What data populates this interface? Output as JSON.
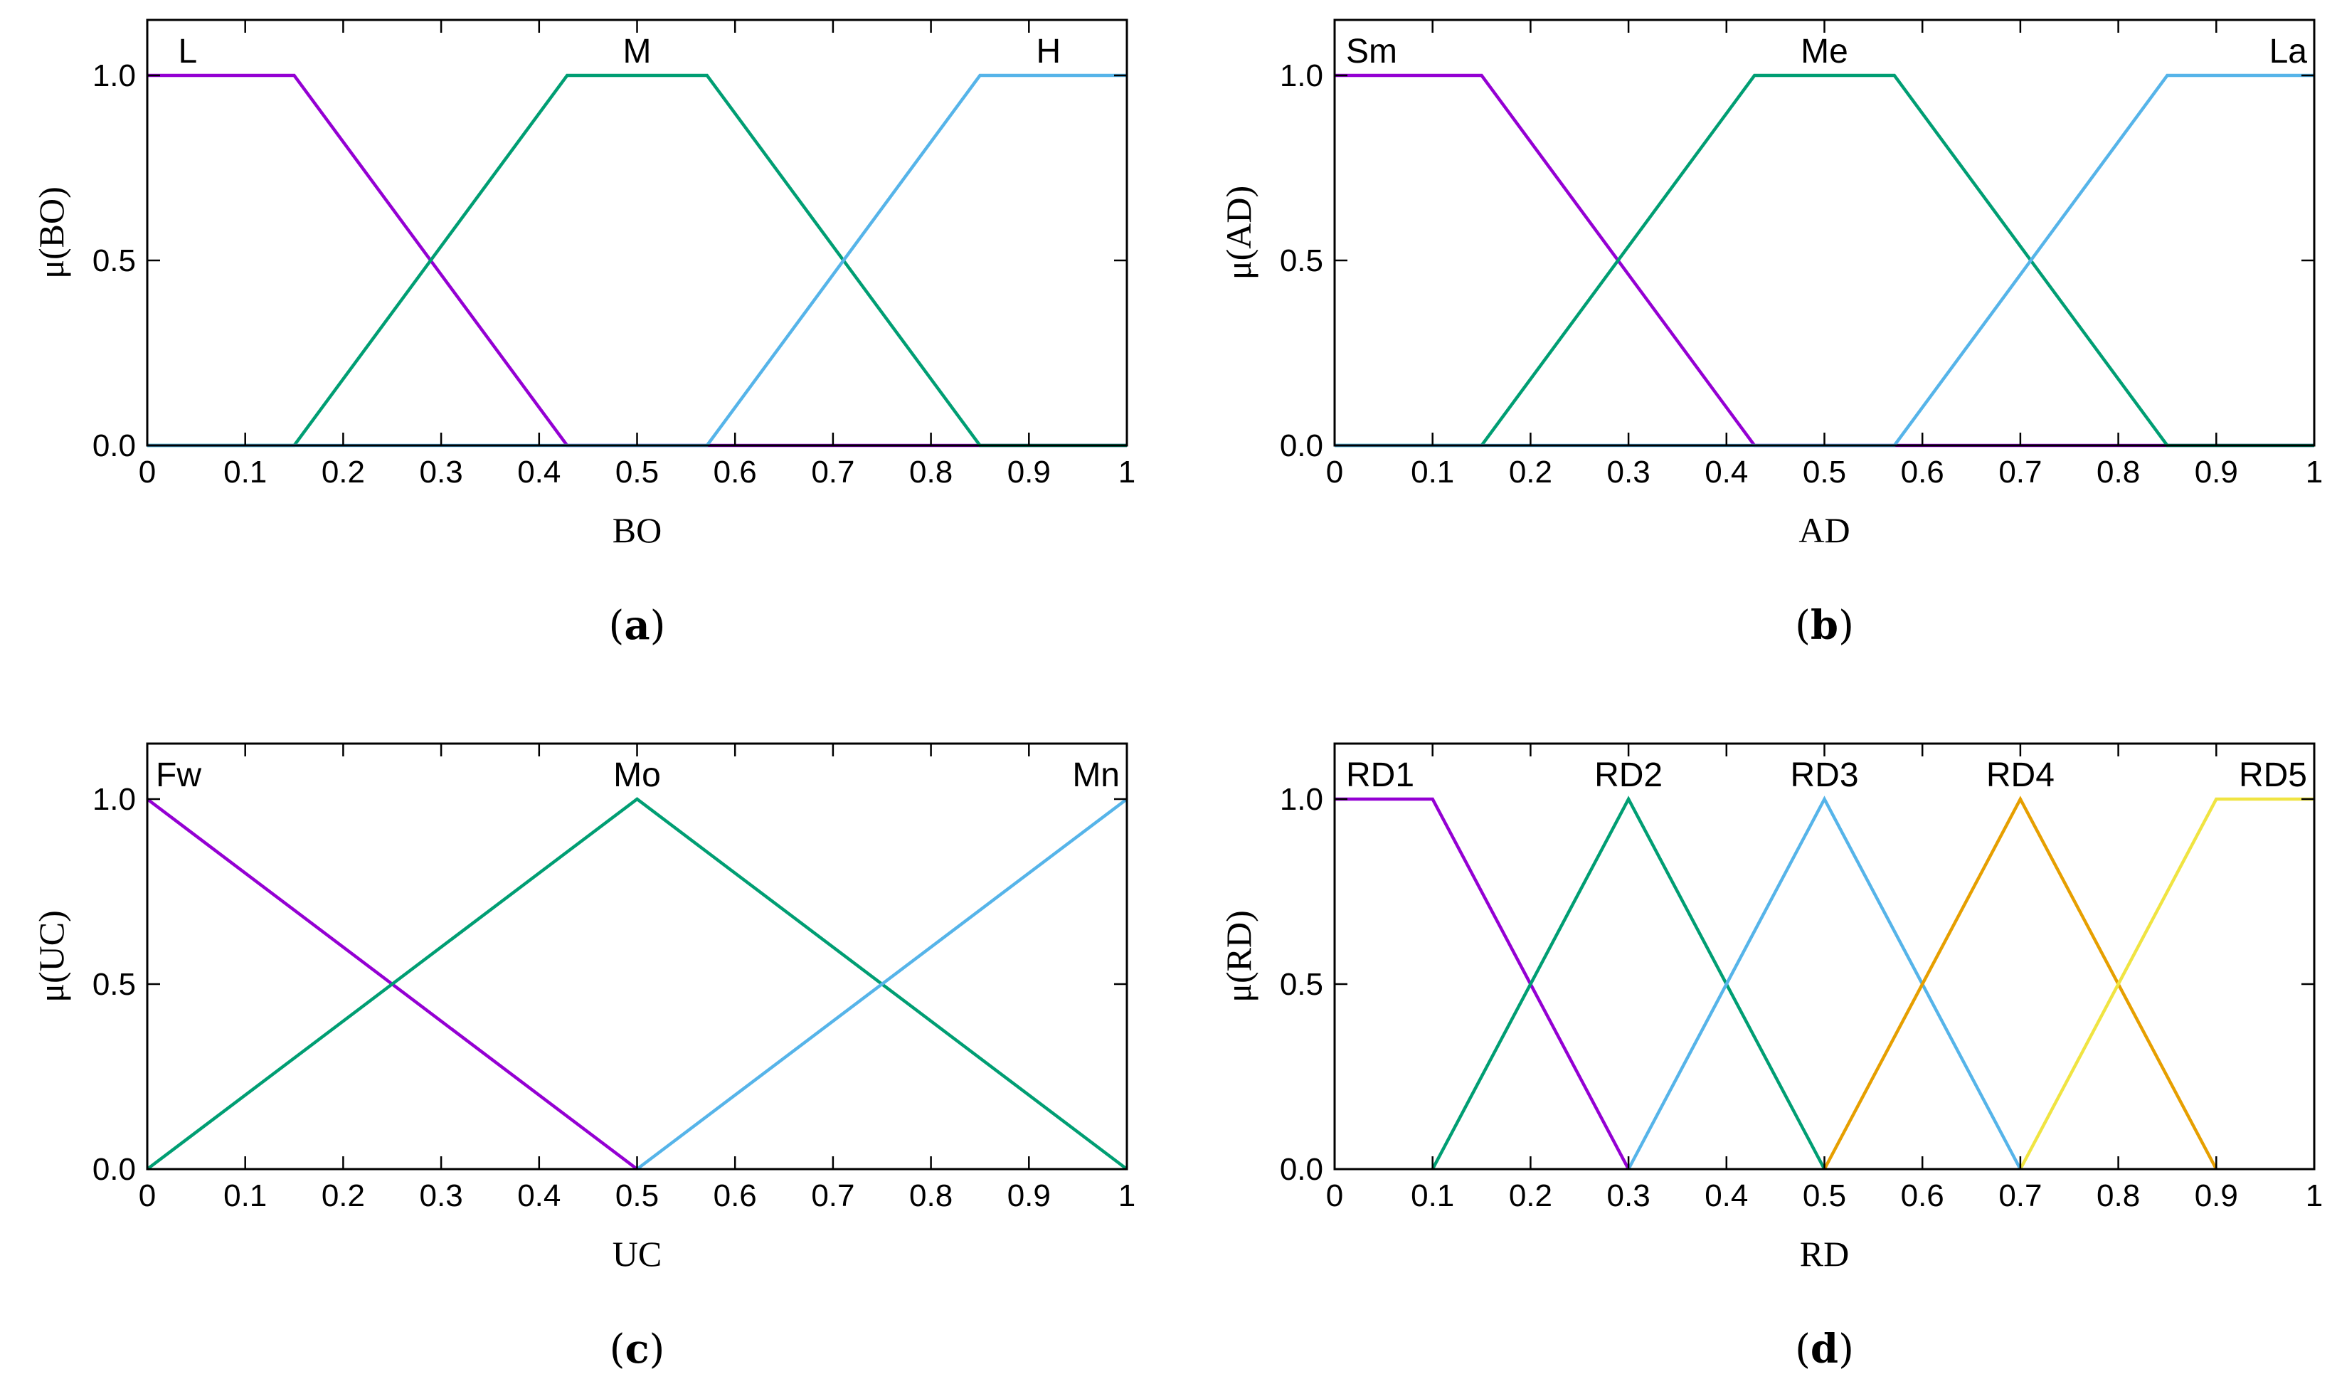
{
  "chart_data": [
    {
      "type": "line",
      "panel": "a",
      "caption": "(a)",
      "xlabel": "BO",
      "ylabel": "μ(BO)",
      "xlim": [
        0,
        1
      ],
      "ylim": [
        0,
        1.15
      ],
      "xticks": [
        "0",
        "0.1",
        "0.2",
        "0.3",
        "0.4",
        "0.5",
        "0.6",
        "0.7",
        "0.8",
        "0.9",
        "1"
      ],
      "yticks": [
        "0.0",
        "0.5",
        "1.0"
      ],
      "grid": false,
      "series": [
        {
          "name": "L",
          "color": "#9400d3",
          "x": [
            0,
            0.15,
            0.4286,
            1
          ],
          "y": [
            1,
            1,
            0,
            0
          ]
        },
        {
          "name": "M",
          "color": "#009e73",
          "x": [
            0,
            0.15,
            0.4286,
            0.5714,
            0.85,
            1
          ],
          "y": [
            0,
            0,
            1,
            1,
            0,
            0
          ]
        },
        {
          "name": "H",
          "color": "#56b4e9",
          "x": [
            0,
            0.5714,
            0.85,
            1
          ],
          "y": [
            0,
            0,
            1,
            1
          ]
        }
      ]
    },
    {
      "type": "line",
      "panel": "b",
      "caption": "(b)",
      "xlabel": "AD",
      "ylabel": "μ(AD)",
      "xlim": [
        0,
        1
      ],
      "ylim": [
        0,
        1.15
      ],
      "xticks": [
        "0",
        "0.1",
        "0.2",
        "0.3",
        "0.4",
        "0.5",
        "0.6",
        "0.7",
        "0.8",
        "0.9",
        "1"
      ],
      "yticks": [
        "0.0",
        "0.5",
        "1.0"
      ],
      "grid": false,
      "series": [
        {
          "name": "Sm",
          "color": "#9400d3",
          "x": [
            0,
            0.15,
            0.4286,
            1
          ],
          "y": [
            1,
            1,
            0,
            0
          ]
        },
        {
          "name": "Me",
          "color": "#009e73",
          "x": [
            0,
            0.15,
            0.4286,
            0.5714,
            0.85,
            1
          ],
          "y": [
            0,
            0,
            1,
            1,
            0,
            0
          ]
        },
        {
          "name": "La",
          "color": "#56b4e9",
          "x": [
            0,
            0.5714,
            0.85,
            1
          ],
          "y": [
            0,
            0,
            1,
            1
          ]
        }
      ]
    },
    {
      "type": "line",
      "panel": "c",
      "caption": "(c)",
      "xlabel": "UC",
      "ylabel": "μ(UC)",
      "xlim": [
        0,
        1
      ],
      "ylim": [
        0,
        1.15
      ],
      "xticks": [
        "0",
        "0.1",
        "0.2",
        "0.3",
        "0.4",
        "0.5",
        "0.6",
        "0.7",
        "0.8",
        "0.9",
        "1"
      ],
      "yticks": [
        "0.0",
        "0.5",
        "1.0"
      ],
      "grid": false,
      "series": [
        {
          "name": "Fw",
          "color": "#9400d3",
          "x": [
            0,
            0.5
          ],
          "y": [
            1,
            0
          ]
        },
        {
          "name": "Mo",
          "color": "#009e73",
          "x": [
            0,
            0.5,
            1
          ],
          "y": [
            0,
            1,
            0
          ]
        },
        {
          "name": "Mn",
          "color": "#56b4e9",
          "x": [
            0.5,
            1
          ],
          "y": [
            0,
            1
          ]
        }
      ]
    },
    {
      "type": "line",
      "panel": "d",
      "caption": "(d)",
      "xlabel": "RD",
      "ylabel": "μ(RD)",
      "xlim": [
        0,
        1
      ],
      "ylim": [
        0,
        1.15
      ],
      "xticks": [
        "0",
        "0.1",
        "0.2",
        "0.3",
        "0.4",
        "0.5",
        "0.6",
        "0.7",
        "0.8",
        "0.9",
        "1"
      ],
      "yticks": [
        "0.0",
        "0.5",
        "1.0"
      ],
      "grid": false,
      "series": [
        {
          "name": "RD1",
          "color": "#9400d3",
          "x": [
            0,
            0.1,
            0.3
          ],
          "y": [
            1,
            1,
            0
          ]
        },
        {
          "name": "RD2",
          "color": "#009e73",
          "x": [
            0.1,
            0.3,
            0.5
          ],
          "y": [
            0,
            1,
            0
          ]
        },
        {
          "name": "RD3",
          "color": "#56b4e9",
          "x": [
            0.3,
            0.5,
            0.7
          ],
          "y": [
            0,
            1,
            0
          ]
        },
        {
          "name": "RD4",
          "color": "#e69f00",
          "x": [
            0.5,
            0.7,
            0.9
          ],
          "y": [
            0,
            1,
            0
          ]
        },
        {
          "name": "RD5",
          "color": "#f0e442",
          "x": [
            0.7,
            0.9,
            1
          ],
          "y": [
            0,
            1,
            1
          ]
        }
      ]
    }
  ]
}
